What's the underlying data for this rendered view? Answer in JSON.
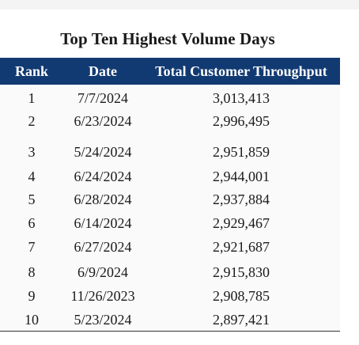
{
  "title": "Top Ten Highest Volume Days",
  "columns": {
    "rank": "Rank",
    "date": "Date",
    "total": "Total Customer Throughput"
  },
  "rows": [
    {
      "rank": "1",
      "date": "7/7/2024",
      "total": "3,013,413"
    },
    {
      "rank": "2",
      "date": "6/23/2024",
      "total": "2,996,495"
    },
    {
      "rank": "3",
      "date": "5/24/2024",
      "total": "2,951,859"
    },
    {
      "rank": "4",
      "date": "6/24/2024",
      "total": "2,944,001"
    },
    {
      "rank": "5",
      "date": "6/28/2024",
      "total": "2,937,884"
    },
    {
      "rank": "6",
      "date": "6/14/2024",
      "total": "2,929,467"
    },
    {
      "rank": "7",
      "date": "6/27/2024",
      "total": "2,921,687"
    },
    {
      "rank": "8",
      "date": "6/9/2024",
      "total": "2,915,830"
    },
    {
      "rank": "9",
      "date": "11/26/2023",
      "total": "2,908,785"
    },
    {
      "rank": "10",
      "date": "5/23/2024",
      "total": "2,897,421"
    }
  ],
  "colors": {
    "header_bg": "#123a72",
    "header_text": "#ffffff"
  }
}
